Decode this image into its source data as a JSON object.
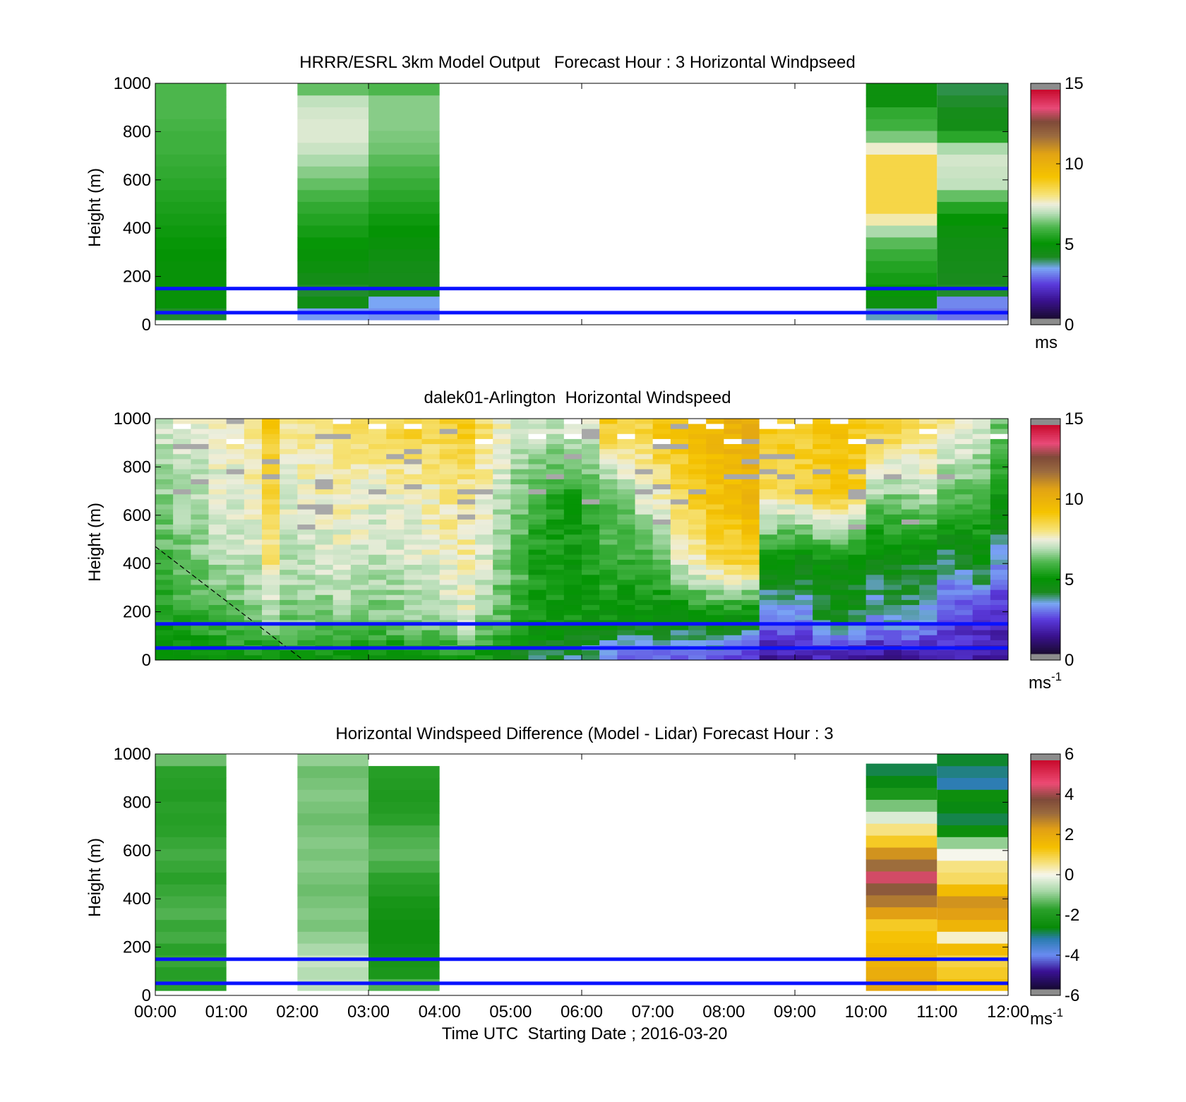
{
  "chart_data": [
    {
      "type": "heatmap",
      "title": "HRRR/ESRL 3km Model Output   Forecast Hour : 3 Horizontal Windpseed",
      "ylabel": "Height (m)",
      "xlabel": "",
      "x_range": [
        "00:00",
        "12:00"
      ],
      "ylim": [
        0,
        1000
      ],
      "yticks": [
        "0",
        "200",
        "400",
        "600",
        "800",
        "1000"
      ],
      "colorbar": {
        "min": 0,
        "max": 15,
        "ticks": [
          "0",
          "5",
          "10",
          "15"
        ],
        "unit": "ms",
        "palette": "speed"
      },
      "reference_lines_m": [
        50,
        150
      ],
      "line_color": "#0a12ff",
      "columns": [
        {
          "start": "00:00",
          "end": "01:00",
          "bottom": 20,
          "top": 1000,
          "speeds": [
            4.0,
            4.8,
            4.8,
            4.8,
            4.8,
            4.9,
            5.0,
            5.1,
            5.2,
            5.3,
            5.4,
            5.5,
            5.6,
            5.7,
            5.8,
            5.8,
            5.9,
            6.0,
            6.0,
            6.0
          ]
        },
        {
          "start": "02:00",
          "end": "03:00",
          "bottom": 20,
          "top": 1000,
          "speeds": [
            3.2,
            4.4,
            4.0,
            4.3,
            4.6,
            4.8,
            5.0,
            5.2,
            5.4,
            5.6,
            5.9,
            6.2,
            6.5,
            6.8,
            7.1,
            7.3,
            7.3,
            7.2,
            7.0,
            6.2
          ]
        },
        {
          "start": "03:00",
          "end": "04:00",
          "bottom": 20,
          "top": 1000,
          "speeds": [
            3.1,
            3.3,
            4.2,
            4.2,
            4.3,
            4.5,
            4.7,
            4.9,
            5.1,
            5.3,
            5.5,
            5.7,
            5.9,
            6.1,
            6.3,
            6.4,
            6.5,
            6.5,
            6.5,
            6.0
          ]
        },
        {
          "start": "10:00",
          "end": "11:00",
          "bottom": 20,
          "top": 1000,
          "speeds": [
            3.5,
            4.6,
            5.0,
            5.2,
            5.4,
            5.7,
            6.1,
            6.8,
            7.8,
            8.6,
            8.6,
            8.6,
            8.6,
            8.6,
            7.6,
            6.4,
            5.8,
            5.6,
            4.6,
            4.6
          ]
        },
        {
          "start": "11:00",
          "end": "12:00",
          "bottom": 20,
          "top": 1000,
          "speeds": [
            2.8,
            3.0,
            4.0,
            4.1,
            4.2,
            4.3,
            4.4,
            4.6,
            4.9,
            5.4,
            6.2,
            7.0,
            7.1,
            7.2,
            6.8,
            5.5,
            4.3,
            4.2,
            4.0,
            3.9
          ]
        }
      ]
    },
    {
      "type": "heatmap",
      "title": "dalek01-Arlington  Horizontal Windspeed",
      "ylabel": "Height (m)",
      "xlabel": "",
      "x_range": [
        "00:00",
        "12:00"
      ],
      "ylim": [
        0,
        1000
      ],
      "yticks": [
        "0",
        "200",
        "400",
        "600",
        "800",
        "1000"
      ],
      "colorbar": {
        "min": 0,
        "max": 15,
        "ticks": [
          "0",
          "5",
          "10",
          "15"
        ],
        "unit": "ms",
        "unit_sup": "-1",
        "palette": "speed"
      },
      "reference_lines_m": [
        50,
        150
      ],
      "line_color": "#0a12ff",
      "overlap_line": {
        "from": {
          "time": "00:00",
          "height": 470
        },
        "to": {
          "time": "02:05",
          "height": 0
        }
      },
      "column_minutes": 15,
      "columns_end": "11:45",
      "profiles": [
        [
          4.8,
          5.3,
          5.9,
          6.5,
          7.1
        ],
        [
          4.7,
          5.5,
          6.2,
          6.8,
          7.2
        ],
        [
          4.6,
          5.6,
          6.5,
          7.0,
          7.3
        ],
        [
          4.8,
          5.9,
          6.7,
          7.3,
          7.5
        ],
        [
          4.9,
          6.0,
          6.9,
          7.4,
          7.7
        ],
        [
          5.0,
          6.2,
          7.0,
          7.6,
          7.9
        ],
        [
          5.0,
          6.5,
          8.0,
          8.8,
          9.0
        ],
        [
          5.0,
          6.3,
          7.0,
          7.4,
          7.8
        ],
        [
          5.0,
          6.4,
          7.1,
          7.5,
          7.9
        ],
        [
          4.8,
          6.3,
          7.2,
          7.6,
          7.9
        ],
        [
          4.7,
          6.5,
          7.3,
          7.7,
          8.1
        ],
        [
          4.6,
          6.4,
          7.2,
          7.6,
          8.2
        ],
        [
          4.6,
          6.2,
          7.0,
          7.4,
          8.5
        ],
        [
          4.7,
          6.3,
          7.1,
          7.5,
          8.6
        ],
        [
          4.9,
          6.5,
          7.2,
          7.4,
          8.8
        ],
        [
          4.8,
          6.6,
          7.4,
          7.7,
          8.6
        ],
        [
          5.0,
          6.8,
          7.6,
          8.0,
          8.7
        ],
        [
          4.9,
          7.2,
          7.8,
          7.8,
          8.9
        ],
        [
          5.0,
          6.5,
          7.2,
          7.6,
          8.3
        ],
        [
          4.6,
          6.0,
          6.5,
          7.0,
          7.6
        ],
        [
          4.2,
          5.5,
          6.0,
          6.3,
          7.0
        ],
        [
          3.9,
          5.2,
          5.2,
          5.8,
          7.1
        ],
        [
          3.8,
          5.1,
          5.0,
          5.6,
          7.0
        ],
        [
          3.6,
          5.0,
          5.0,
          5.3,
          7.2
        ],
        [
          3.3,
          4.9,
          5.3,
          5.8,
          7.3
        ],
        [
          2.6,
          4.8,
          5.8,
          6.2,
          8.8
        ],
        [
          2.4,
          4.6,
          5.6,
          6.6,
          8.6
        ],
        [
          2.5,
          4.5,
          5.8,
          7.4,
          8.6
        ],
        [
          2.6,
          4.4,
          6.2,
          7.8,
          9.2
        ],
        [
          2.3,
          4.3,
          7.2,
          8.6,
          9.2
        ],
        [
          2.5,
          4.4,
          7.8,
          9.0,
          9.6
        ],
        [
          2.7,
          4.5,
          8.4,
          9.4,
          9.8
        ],
        [
          2.3,
          4.4,
          8.6,
          9.6,
          10.1
        ],
        [
          2.1,
          4.0,
          8.8,
          9.9,
          10.4
        ],
        [
          1.2,
          2.8,
          4.8,
          8.4,
          9.1
        ],
        [
          1.3,
          2.9,
          4.6,
          8.3,
          9.0
        ],
        [
          1.4,
          3.0,
          4.4,
          8.6,
          8.9
        ],
        [
          1.5,
          3.9,
          4.8,
          9.0,
          9.2
        ],
        [
          1.3,
          4.2,
          4.6,
          9.2,
          9.3
        ],
        [
          1.1,
          4.0,
          4.5,
          8.8,
          9.0
        ],
        [
          1.0,
          3.2,
          4.2,
          6.8,
          8.7
        ],
        [
          1.1,
          3.4,
          4.4,
          6.6,
          8.6
        ],
        [
          1.2,
          3.3,
          4.3,
          6.8,
          8.3
        ],
        [
          1.4,
          3.0,
          4.2,
          7.2,
          8.1
        ],
        [
          1.6,
          2.3,
          3.6,
          6.4,
          7.7
        ],
        [
          1.5,
          2.2,
          3.8,
          6.2,
          7.5
        ],
        [
          1.3,
          2.0,
          4.4,
          6.0,
          7.2
        ],
        [
          1.2,
          1.9,
          3.2,
          5.0,
          6.2
        ]
      ]
    },
    {
      "type": "heatmap",
      "title": "Horizontal Windspeed Difference (Model - Lidar) Forecast Hour : 3",
      "ylabel": "Height (m)",
      "xlabel": "Time UTC  Starting Date ; 2016-03-20",
      "x_range": [
        "00:00",
        "12:00"
      ],
      "xticks": [
        "00:00",
        "01:00",
        "02:00",
        "03:00",
        "04:00",
        "05:00",
        "06:00",
        "07:00",
        "08:00",
        "09:00",
        "10:00",
        "11:00",
        "12:00"
      ],
      "ylim": [
        0,
        1000
      ],
      "yticks": [
        "0",
        "200",
        "400",
        "600",
        "800",
        "1000"
      ],
      "colorbar": {
        "min": -6,
        "max": 6,
        "ticks": [
          "-6",
          "-4",
          "-2",
          "0",
          "2",
          "4",
          "6"
        ],
        "unit": "ms",
        "unit_sup": "-1",
        "palette": "diff"
      },
      "reference_lines_m": [
        50,
        150
      ],
      "line_color": "#0a12ff",
      "columns": [
        {
          "start": "00:00",
          "end": "01:00",
          "bottom": 20,
          "top": 1000,
          "diffs": [
            -1.8,
            -1.9,
            -1.7,
            -1.8,
            -1.6,
            -1.7,
            -1.5,
            -1.6,
            -1.7,
            -1.8,
            -1.7,
            -1.6,
            -1.7,
            -1.8,
            -1.9,
            -1.8,
            -2.0,
            -1.9,
            -1.8,
            -1.3
          ]
        },
        {
          "start": "02:00",
          "end": "03:00",
          "bottom": 20,
          "top": 1000,
          "diffs": [
            -0.6,
            -0.7,
            -0.5,
            -0.8,
            -1.0,
            -1.2,
            -1.1,
            -1.2,
            -1.3,
            -1.2,
            -1.1,
            -1.2,
            -1.1,
            -1.2,
            -1.3,
            -1.2,
            -1.1,
            -1.2,
            -1.3,
            -1.0
          ]
        },
        {
          "start": "03:00",
          "end": "04:00",
          "bottom": 20,
          "top": 950,
          "diffs": [
            -1.5,
            -2.2,
            -2.3,
            -2.4,
            -2.5,
            -2.5,
            -2.4,
            -2.3,
            -2.0,
            -1.8,
            -1.6,
            -1.4,
            -1.5,
            -1.6,
            -1.8,
            -2.0,
            -2.1,
            -2.0,
            -1.9
          ]
        },
        {
          "start": "10:00",
          "end": "11:00",
          "bottom": 20,
          "top": 960,
          "diffs": [
            2.2,
            2.0,
            1.8,
            1.6,
            1.4,
            1.2,
            2.4,
            3.0,
            3.6,
            4.6,
            3.2,
            2.6,
            1.2,
            0.6,
            -0.3,
            -1.2,
            -2.2,
            -2.8,
            -3.0
          ]
        },
        {
          "start": "11:00",
          "end": "12:00",
          "bottom": 20,
          "top": 1000,
          "diffs": [
            1.4,
            1.2,
            1.0,
            1.6,
            0.2,
            1.8,
            2.4,
            2.6,
            1.6,
            0.8,
            0.6,
            0.0,
            -1.0,
            -2.6,
            -3.0,
            -2.8,
            -2.6,
            -3.4,
            -3.2,
            -2.9
          ]
        }
      ]
    }
  ]
}
